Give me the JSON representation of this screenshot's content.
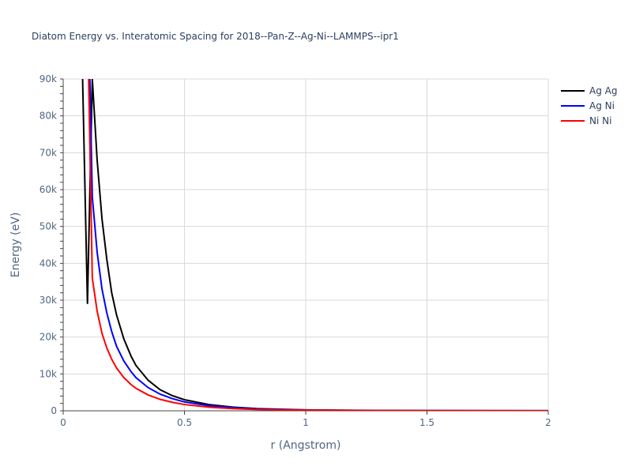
{
  "chart_data": {
    "type": "line",
    "title": "Diatom Energy vs. Interatomic Spacing for 2018--Pan-Z--Ag-Ni--LAMMPS--ipr1",
    "xlabel": "r (Angstrom)",
    "ylabel": "Energy (eV)",
    "xlim": [
      0,
      2
    ],
    "ylim": [
      0,
      90000
    ],
    "x_ticks": [
      0,
      0.5,
      1,
      1.5,
      2
    ],
    "x_tick_labels": [
      "0",
      "0.5",
      "1",
      "1.5",
      "2"
    ],
    "y_ticks": [
      0,
      10000,
      20000,
      30000,
      40000,
      50000,
      60000,
      70000,
      80000,
      90000
    ],
    "y_tick_labels": [
      "0",
      "10k",
      "20k",
      "30k",
      "40k",
      "50k",
      "60k",
      "70k",
      "80k",
      "90k"
    ],
    "grid": true,
    "legend_position": "top-right",
    "series": [
      {
        "name": "Ag Ag",
        "color": "#000000",
        "x": [
          0.08,
          0.1,
          0.12,
          0.14,
          0.16,
          0.18,
          0.2,
          0.22,
          0.25,
          0.28,
          0.3,
          0.35,
          0.4,
          0.45,
          0.5,
          0.6,
          0.7,
          0.8,
          1.0,
          1.2,
          1.5,
          2.0
        ],
        "y": [
          90000,
          29000,
          90000,
          68000,
          52000,
          41000,
          32000,
          26000,
          19500,
          14800,
          12300,
          8300,
          5700,
          4100,
          3000,
          1700,
          1000,
          600,
          250,
          130,
          60,
          20
        ]
      },
      {
        "name": "Ag Ni",
        "color": "#0000ff",
        "x": [
          0.11,
          0.12,
          0.14,
          0.16,
          0.18,
          0.2,
          0.22,
          0.25,
          0.28,
          0.3,
          0.35,
          0.4,
          0.45,
          0.5,
          0.6,
          0.7,
          0.8,
          1.0,
          1.2,
          1.5,
          2.0
        ],
        "y": [
          90000,
          58000,
          43000,
          33000,
          26500,
          21500,
          17500,
          13500,
          10600,
          9000,
          6300,
          4500,
          3300,
          2400,
          1400,
          850,
          500,
          200,
          100,
          45,
          15
        ]
      },
      {
        "name": "Ni Ni",
        "color": "#ff0000",
        "x": [
          0.105,
          0.12,
          0.14,
          0.16,
          0.18,
          0.2,
          0.22,
          0.25,
          0.28,
          0.3,
          0.35,
          0.4,
          0.45,
          0.5,
          0.6,
          0.7,
          0.8,
          1.0,
          1.2,
          1.5,
          2.0
        ],
        "y": [
          90000,
          36000,
          27000,
          21000,
          17000,
          14000,
          11600,
          9000,
          7100,
          6100,
          4300,
          3100,
          2300,
          1700,
          1000,
          600,
          350,
          150,
          70,
          30,
          10
        ]
      }
    ]
  }
}
